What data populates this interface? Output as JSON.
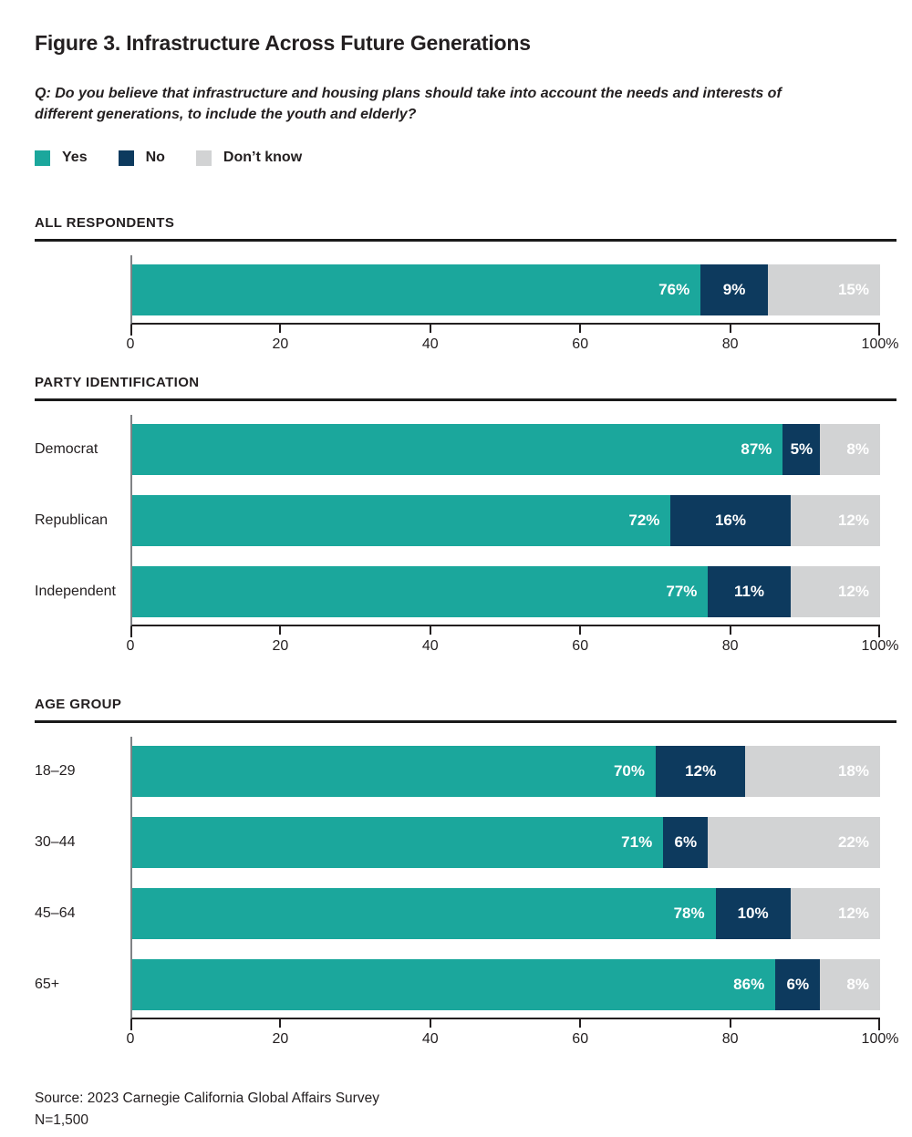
{
  "header": {
    "figure_title": "Figure 3. Infrastructure Across Future Generations",
    "question": "Q: Do you believe that infrastructure and housing plans should take into account the needs and interests of different generations, to include the youth and elderly?"
  },
  "legend": {
    "items": [
      {
        "label": "Yes",
        "color": "#1BA79C"
      },
      {
        "label": "No",
        "color": "#0D3A5E"
      },
      {
        "label": "Don’t know",
        "color": "#D2D3D4"
      }
    ]
  },
  "colors": {
    "yes_teal": "#1BA79C",
    "no_navy": "#0D3A5E",
    "dontknow_gray": "#D2D3D4",
    "axis_line": "#231F20",
    "y_axis_line": "#808285",
    "section_rule": "#1A1A1A",
    "value_label_text": "#FFFFFF"
  },
  "chart_data": {
    "type": "bar",
    "orientation": "horizontal",
    "stacked": true,
    "unit": "percent",
    "xlim": [
      0,
      100
    ],
    "x_ticks": [
      0,
      20,
      40,
      60,
      80,
      100
    ],
    "x_tick_labels": [
      "0",
      "20",
      "40",
      "60",
      "80",
      "100%"
    ],
    "grid": false,
    "legend_position": "top-left",
    "series_names": [
      "Yes",
      "No",
      "Don’t know"
    ],
    "series_colors": [
      "#1BA79C",
      "#0D3A5E",
      "#D2D3D4"
    ],
    "sections": [
      {
        "heading": "ALL RESPONDENTS",
        "rows": [
          {
            "label": "",
            "values": [
              76,
              9,
              15
            ],
            "value_labels": [
              "76%",
              "9%",
              "15%"
            ]
          }
        ]
      },
      {
        "heading": "PARTY IDENTIFICATION",
        "rows": [
          {
            "label": "Democrat",
            "values": [
              87,
              5,
              8
            ],
            "value_labels": [
              "87%",
              "5%",
              "8%"
            ]
          },
          {
            "label": "Republican",
            "values": [
              72,
              16,
              12
            ],
            "value_labels": [
              "72%",
              "16%",
              "12%"
            ]
          },
          {
            "label": "Independent",
            "values": [
              77,
              11,
              12
            ],
            "value_labels": [
              "77%",
              "11%",
              "12%"
            ]
          }
        ]
      },
      {
        "heading": "AGE GROUP",
        "rows": [
          {
            "label": "18–29",
            "values": [
              70,
              12,
              18
            ],
            "value_labels": [
              "70%",
              "12%",
              "18%"
            ]
          },
          {
            "label": "30–44",
            "values": [
              71,
              6,
              22
            ],
            "value_labels": [
              "71%",
              "6%",
              "22%"
            ]
          },
          {
            "label": "45–64",
            "values": [
              78,
              10,
              12
            ],
            "value_labels": [
              "78%",
              "10%",
              "12%"
            ]
          },
          {
            "label": "65+",
            "values": [
              86,
              6,
              8
            ],
            "value_labels": [
              "86%",
              "6%",
              "8%"
            ]
          }
        ]
      }
    ]
  },
  "footer": {
    "source": "Source: 2023 Carnegie California Global Affairs Survey",
    "n": "N=1,500"
  }
}
